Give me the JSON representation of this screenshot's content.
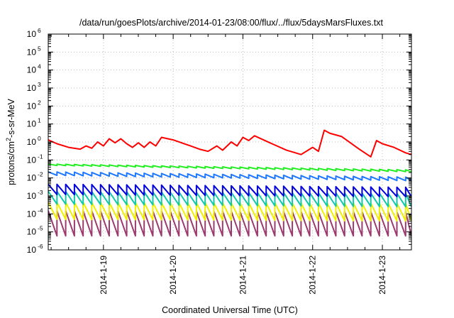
{
  "chart_data": {
    "type": "line",
    "title": "/data/run/goesPlots/archive/2014-01-23/08:00/flux/../flux/5daysMarsFluxes.txt",
    "xlabel": "Coordinated Universal Time (UTC)",
    "ylabel": {
      "before": "protons/cm",
      "sup": "2",
      "after": "-s-sr-MeV"
    },
    "yscale": "log",
    "ylim": [
      1e-06,
      1000000.0
    ],
    "ytick_labels": [
      {
        "base": "10",
        "exp": "-6"
      },
      {
        "base": "10",
        "exp": "-5"
      },
      {
        "base": "10",
        "exp": "-4"
      },
      {
        "base": "10",
        "exp": "-3"
      },
      {
        "base": "10",
        "exp": "-2"
      },
      {
        "base": "10",
        "exp": "-1"
      },
      {
        "base": "10",
        "exp": "0"
      },
      {
        "base": "10",
        "exp": "1"
      },
      {
        "base": "10",
        "exp": "2"
      },
      {
        "base": "10",
        "exp": "3"
      },
      {
        "base": "10",
        "exp": "4"
      },
      {
        "base": "10",
        "exp": "5"
      },
      {
        "base": "10",
        "exp": "6"
      }
    ],
    "xlim": [
      "2014-01-18T05:00",
      "2014-01-23T10:00"
    ],
    "xtick_labels": [
      "2014-1-19",
      "2014-1-20",
      "2014-1-21",
      "2014-1-22",
      "2014-1-23"
    ],
    "grid": true,
    "series": [
      {
        "color": "#ff0000",
        "sawtooth": false,
        "points": [
          [
            "2014-01-18T05:00",
            1.3
          ],
          [
            "2014-01-18T08:00",
            0.8
          ],
          [
            "2014-01-18T12:00",
            0.5
          ],
          [
            "2014-01-18T16:00",
            0.4
          ],
          [
            "2014-01-18T18:00",
            0.6
          ],
          [
            "2014-01-18T20:00",
            0.45
          ],
          [
            "2014-01-18T22:00",
            1.0
          ],
          [
            "2014-01-19T00:00",
            0.6
          ],
          [
            "2014-01-19T02:00",
            1.5
          ],
          [
            "2014-01-19T04:00",
            0.9
          ],
          [
            "2014-01-19T06:00",
            1.5
          ],
          [
            "2014-01-19T08:00",
            0.8
          ],
          [
            "2014-01-19T10:00",
            0.5
          ],
          [
            "2014-01-19T12:00",
            0.9
          ],
          [
            "2014-01-19T14:00",
            0.5
          ],
          [
            "2014-01-19T16:00",
            1.0
          ],
          [
            "2014-01-19T18:00",
            0.6
          ],
          [
            "2014-01-19T20:00",
            1.8
          ],
          [
            "2014-01-20T00:00",
            1.3
          ],
          [
            "2014-01-20T06:00",
            0.6
          ],
          [
            "2014-01-20T09:00",
            0.4
          ],
          [
            "2014-01-20T12:00",
            0.3
          ],
          [
            "2014-01-20T15:00",
            0.6
          ],
          [
            "2014-01-20T17:00",
            0.35
          ],
          [
            "2014-01-20T20:00",
            1.0
          ],
          [
            "2014-01-20T22:00",
            0.6
          ],
          [
            "2014-01-21T00:00",
            1.8
          ],
          [
            "2014-01-21T02:00",
            1.2
          ],
          [
            "2014-01-21T04:00",
            2.2
          ],
          [
            "2014-01-21T10:00",
            0.8
          ],
          [
            "2014-01-21T15:00",
            0.35
          ],
          [
            "2014-01-21T20:00",
            0.2
          ],
          [
            "2014-01-22T00:00",
            0.5
          ],
          [
            "2014-01-22T02:00",
            0.3
          ],
          [
            "2014-01-22T04:00",
            4.5
          ],
          [
            "2014-01-22T06:00",
            3.0
          ],
          [
            "2014-01-22T10:00",
            2.0
          ],
          [
            "2014-01-22T16:00",
            0.4
          ],
          [
            "2014-01-22T20:00",
            0.15
          ],
          [
            "2014-01-22T22:00",
            1.2
          ],
          [
            "2014-01-23T00:00",
            0.8
          ],
          [
            "2014-01-23T04:00",
            0.5
          ],
          [
            "2014-01-23T08:00",
            0.25
          ],
          [
            "2014-01-23T10:00",
            0.2
          ]
        ]
      },
      {
        "color": "#22ee22",
        "sawtooth": true,
        "top_start": 0.06,
        "top_end": 0.028,
        "bottom_start": 0.05,
        "bottom_end": 0.022
      },
      {
        "color": "#1e78ff",
        "sawtooth": true,
        "top_start": 0.022,
        "top_end": 0.011,
        "bottom_start": 0.014,
        "bottom_end": 0.007
      },
      {
        "color": "#0000dd",
        "sawtooth": true,
        "top_start": 0.0045,
        "top_end": 0.003,
        "bottom_start": 0.0012,
        "bottom_end": 0.0009
      },
      {
        "color": "#11c9a8",
        "sawtooth": true,
        "top_start": 0.0018,
        "top_end": 0.0014,
        "bottom_start": 0.00035,
        "bottom_end": 0.00025
      },
      {
        "color": "#f0f000",
        "sawtooth": true,
        "top_start": 0.00045,
        "top_end": 0.0004,
        "bottom_start": 5e-05,
        "bottom_end": 4e-05
      },
      {
        "color": "#9b3a6e",
        "sawtooth": true,
        "top_start": 0.00015,
        "top_end": 0.00013,
        "bottom_start": 6e-06,
        "bottom_end": 6e-06
      }
    ],
    "sawtooth_period_hours": 3
  }
}
